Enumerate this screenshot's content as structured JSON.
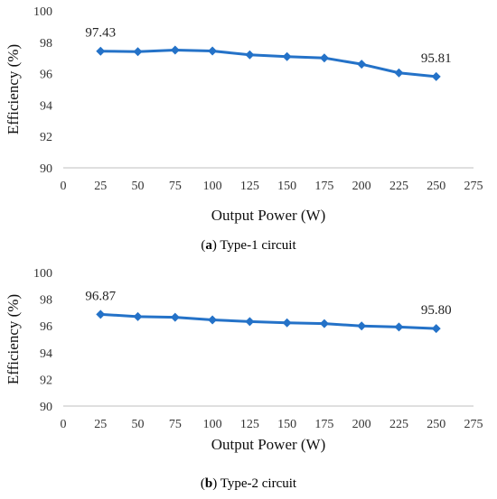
{
  "chart_data": [
    {
      "type": "line",
      "caption_letter": "a",
      "caption_text": "Type-1 circuit",
      "xlabel": "Output Power (W)",
      "ylabel": "Efficiency (%)",
      "xlim": [
        0,
        275
      ],
      "ylim": [
        90,
        100
      ],
      "xticks": [
        0,
        25,
        50,
        75,
        100,
        125,
        150,
        175,
        200,
        225,
        250,
        275
      ],
      "yticks": [
        90,
        92,
        94,
        96,
        98,
        100
      ],
      "grid": false,
      "color": "#2472C8",
      "x": [
        25,
        50,
        75,
        100,
        125,
        150,
        175,
        200,
        225,
        250
      ],
      "y": [
        97.43,
        97.4,
        97.5,
        97.44,
        97.2,
        97.08,
        97.0,
        96.6,
        96.05,
        95.81
      ],
      "annotations": [
        {
          "index": 0,
          "text": "97.43"
        },
        {
          "index": 9,
          "text": "95.81"
        }
      ]
    },
    {
      "type": "line",
      "caption_letter": "b",
      "caption_text": "Type-2 circuit",
      "xlabel": "Output Power (W)",
      "ylabel": "Efficiency (%)",
      "xlim": [
        0,
        275
      ],
      "ylim": [
        90,
        100
      ],
      "xticks": [
        0,
        25,
        50,
        75,
        100,
        125,
        150,
        175,
        200,
        225,
        250,
        275
      ],
      "yticks": [
        90,
        92,
        94,
        96,
        98,
        100
      ],
      "grid": false,
      "color": "#2472C8",
      "x": [
        25,
        50,
        75,
        100,
        125,
        150,
        175,
        200,
        225,
        250
      ],
      "y": [
        96.87,
        96.7,
        96.65,
        96.45,
        96.33,
        96.23,
        96.17,
        96.0,
        95.92,
        95.8
      ],
      "annotations": [
        {
          "index": 0,
          "text": "96.87"
        },
        {
          "index": 9,
          "text": "95.80"
        }
      ]
    }
  ]
}
